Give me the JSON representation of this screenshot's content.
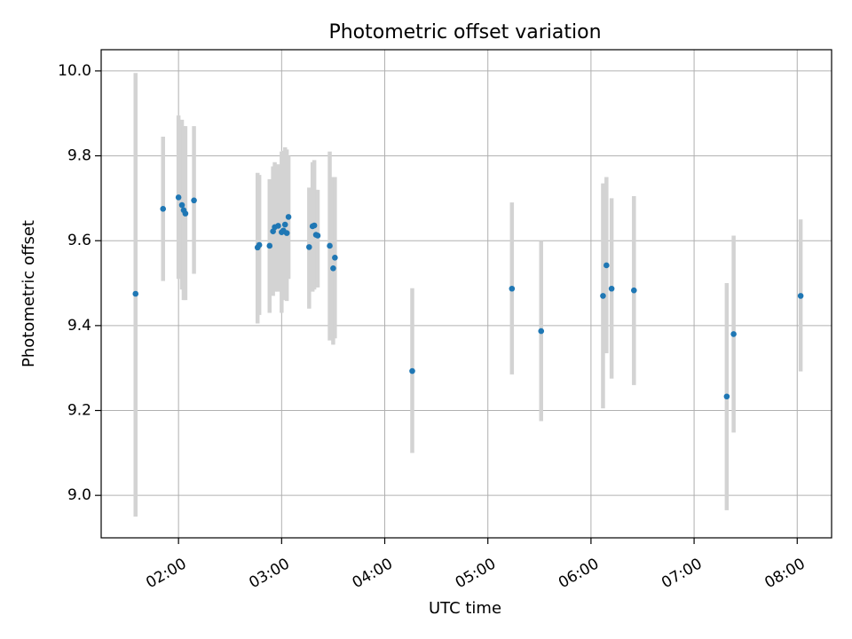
{
  "chart_data": {
    "type": "scatter",
    "title": "Photometric offset variation",
    "xlabel": "UTC time",
    "ylabel": "Photometric offset",
    "xlim": [
      "01:15",
      "08:20"
    ],
    "ylim": [
      8.9,
      10.05
    ],
    "x_ticks": [
      "02:00",
      "03:00",
      "04:00",
      "05:00",
      "06:00",
      "07:00",
      "08:00"
    ],
    "y_ticks": [
      "9.0",
      "9.2",
      "9.4",
      "9.6",
      "9.8",
      "10.0"
    ],
    "grid": true,
    "marker_color": "#1f77b4",
    "errorbar_color": "#d3d3d3",
    "points": [
      {
        "time": "01:35",
        "y": 9.475,
        "ylo": 8.95,
        "yhi": 9.995
      },
      {
        "time": "01:51",
        "y": 9.675,
        "ylo": 9.505,
        "yhi": 9.845
      },
      {
        "time": "02:00",
        "y": 9.702,
        "ylo": 9.51,
        "yhi": 9.895
      },
      {
        "time": "02:02",
        "y": 9.684,
        "ylo": 9.485,
        "yhi": 9.885
      },
      {
        "time": "02:03",
        "y": 9.672,
        "ylo": 9.46,
        "yhi": 9.87
      },
      {
        "time": "02:04",
        "y": 9.664,
        "ylo": 9.46,
        "yhi": 9.87
      },
      {
        "time": "02:09",
        "y": 9.695,
        "ylo": 9.522,
        "yhi": 9.87
      },
      {
        "time": "02:46",
        "y": 9.584,
        "ylo": 9.405,
        "yhi": 9.76
      },
      {
        "time": "02:47",
        "y": 9.59,
        "ylo": 9.425,
        "yhi": 9.755
      },
      {
        "time": "02:53",
        "y": 9.588,
        "ylo": 9.43,
        "yhi": 9.745
      },
      {
        "time": "02:55",
        "y": 9.622,
        "ylo": 9.47,
        "yhi": 9.775
      },
      {
        "time": "02:56",
        "y": 9.632,
        "ylo": 9.48,
        "yhi": 9.785
      },
      {
        "time": "02:58",
        "y": 9.635,
        "ylo": 9.48,
        "yhi": 9.78
      },
      {
        "time": "03:00",
        "y": 9.62,
        "ylo": 9.43,
        "yhi": 9.81
      },
      {
        "time": "03:01",
        "y": 9.624,
        "ylo": 9.47,
        "yhi": 9.812
      },
      {
        "time": "03:02",
        "y": 9.638,
        "ylo": 9.46,
        "yhi": 9.82
      },
      {
        "time": "03:03",
        "y": 9.618,
        "ylo": 9.458,
        "yhi": 9.815
      },
      {
        "time": "03:04",
        "y": 9.656,
        "ylo": 9.51,
        "yhi": 9.8
      },
      {
        "time": "03:16",
        "y": 9.585,
        "ylo": 9.44,
        "yhi": 9.725
      },
      {
        "time": "03:18",
        "y": 9.634,
        "ylo": 9.48,
        "yhi": 9.785
      },
      {
        "time": "03:19",
        "y": 9.636,
        "ylo": 9.485,
        "yhi": 9.79
      },
      {
        "time": "03:20",
        "y": 9.614,
        "ylo": 9.49,
        "yhi": 9.72
      },
      {
        "time": "03:21",
        "y": 9.612,
        "ylo": 9.49,
        "yhi": 9.72
      },
      {
        "time": "03:28",
        "y": 9.588,
        "ylo": 9.365,
        "yhi": 9.81
      },
      {
        "time": "03:30",
        "y": 9.535,
        "ylo": 9.355,
        "yhi": 9.75
      },
      {
        "time": "03:31",
        "y": 9.56,
        "ylo": 9.37,
        "yhi": 9.75
      },
      {
        "time": "04:16",
        "y": 9.293,
        "ylo": 9.1,
        "yhi": 9.488
      },
      {
        "time": "05:14",
        "y": 9.487,
        "ylo": 9.285,
        "yhi": 9.69
      },
      {
        "time": "05:31",
        "y": 9.387,
        "ylo": 9.175,
        "yhi": 9.6
      },
      {
        "time": "06:07",
        "y": 9.47,
        "ylo": 9.205,
        "yhi": 9.735
      },
      {
        "time": "06:09",
        "y": 9.542,
        "ylo": 9.335,
        "yhi": 9.75
      },
      {
        "time": "06:12",
        "y": 9.487,
        "ylo": 9.275,
        "yhi": 9.7
      },
      {
        "time": "06:25",
        "y": 9.483,
        "ylo": 9.26,
        "yhi": 9.705
      },
      {
        "time": "07:19",
        "y": 9.233,
        "ylo": 8.965,
        "yhi": 9.5
      },
      {
        "time": "07:23",
        "y": 9.38,
        "ylo": 9.148,
        "yhi": 9.612
      },
      {
        "time": "08:02",
        "y": 9.47,
        "ylo": 9.292,
        "yhi": 9.65
      }
    ]
  }
}
